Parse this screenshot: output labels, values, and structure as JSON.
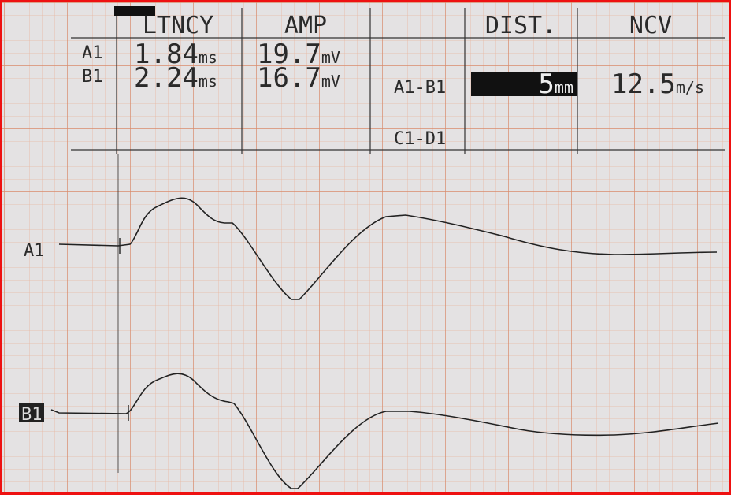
{
  "header": {
    "columns": [
      "LTNCY",
      "AMP",
      "DIST.",
      "NCV"
    ]
  },
  "table": {
    "rows": [
      {
        "label": "A1",
        "latency": {
          "value": "1.84",
          "unit": "ms"
        },
        "amplitude": {
          "value": "19.7",
          "unit": "mV"
        }
      },
      {
        "label": "B1",
        "latency": {
          "value": "2.24",
          "unit": "ms"
        },
        "amplitude": {
          "value": "16.7",
          "unit": "mV"
        }
      }
    ],
    "segments": [
      {
        "label": "A1-B1",
        "distance": {
          "value": "5",
          "unit": "mm"
        },
        "ncv": {
          "value": "12.5",
          "unit": "m/s"
        }
      },
      {
        "label": "C1-D1"
      }
    ]
  },
  "traces": [
    {
      "label": "A1"
    },
    {
      "label": "B1"
    }
  ]
}
